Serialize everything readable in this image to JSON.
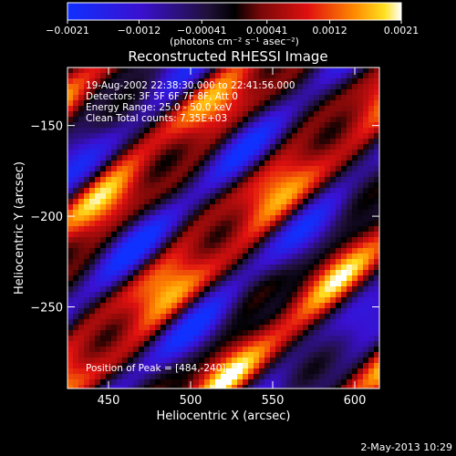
{
  "chart_data": {
    "type": "heatmap",
    "title": "Reconstructed RHESSI Image",
    "xlabel": "Heliocentric X (arcsec)",
    "ylabel": "Heliocentric Y (arcsec)",
    "xlim": [
      425,
      615
    ],
    "ylim": [
      -295,
      -118
    ],
    "x_ticks": [
      450,
      500,
      550,
      600
    ],
    "x_tick_labels": [
      "450",
      "500",
      "550",
      "600"
    ],
    "y_ticks": [
      -150,
      -200,
      -250
    ],
    "y_tick_labels": [
      "−150",
      "−200",
      "−250"
    ],
    "colorbar": {
      "min": -0.0021,
      "max": 0.0021,
      "ticks": [
        -0.0021,
        -0.0012,
        -0.00041,
        0.00041,
        0.0012,
        0.0021
      ],
      "tick_labels": [
        "−0.0021",
        "−0.0012",
        "−0.00041",
        "0.00041",
        "0.0012",
        "0.0021"
      ],
      "unit_label": "(photons cm⁻² s⁻¹ asec⁻²)"
    },
    "annotations": {
      "time_range": "19-Aug-2002 22:38:30.000 to 22:41:56.000",
      "detectors": "Detectors: 3F 5F 6F 7F 8F, Att 0",
      "energy_range": "Energy Range: 25.0 - 50.0 keV",
      "clean_counts": "Clean    Total counts: 7.35E+03",
      "peak_position": "Position of Peak = [484,-240]"
    },
    "peak": [
      484,
      -240
    ],
    "pattern": "diagonal fringes running from lower-left to upper-right, alternating bright (red/yellow/white) and negative (blue/purple) bands"
  },
  "footer": {
    "timestamp": "2-May-2013 10:29"
  }
}
